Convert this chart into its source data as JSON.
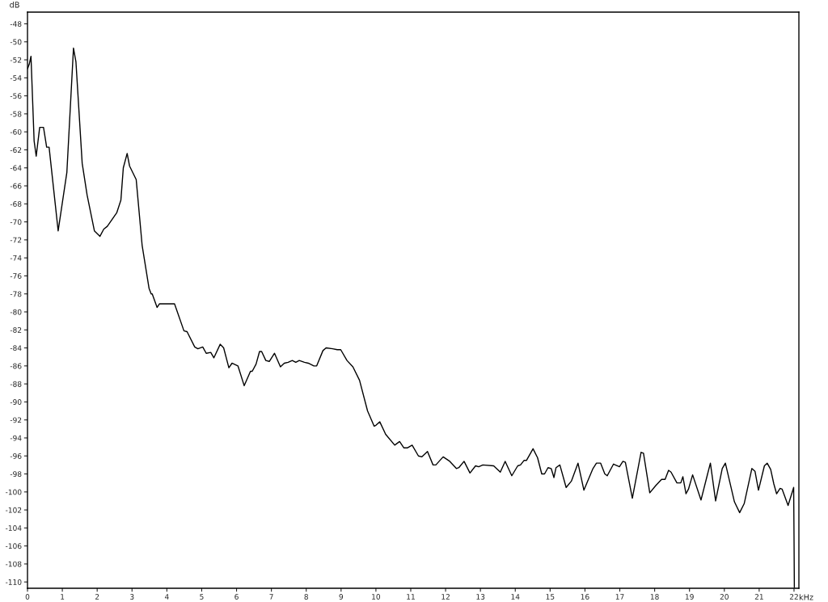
{
  "chart_data": {
    "type": "line",
    "xlabel": "kHz",
    "ylabel": "dB",
    "xlim": [
      0,
      22.14
    ],
    "ylim": [
      -110.7,
      -46.7
    ],
    "xticks": [
      0,
      1,
      2,
      3,
      4,
      5,
      6,
      7,
      8,
      9,
      10,
      11,
      12,
      13,
      14,
      15,
      16,
      17,
      18,
      19,
      20,
      21,
      22
    ],
    "yticks": [
      -48,
      -50,
      -52,
      -54,
      -56,
      -58,
      -60,
      -62,
      -64,
      -66,
      -68,
      -70,
      -72,
      -74,
      -76,
      -78,
      -80,
      -82,
      -84,
      -86,
      -88,
      -90,
      -92,
      -94,
      -96,
      -98,
      -100,
      -102,
      -104,
      -106,
      -108,
      -110
    ],
    "grid": false,
    "legend": false,
    "series": [
      {
        "color": "#000000",
        "x": [
          0,
          0.05,
          0.1,
          0.19,
          0.25,
          0.35,
          0.46,
          0.55,
          0.62,
          0.88,
          1.13,
          1.32,
          1.39,
          1.57,
          1.71,
          1.92,
          2.08,
          2.19,
          2.29,
          2.56,
          2.68,
          2.75,
          2.86,
          2.93,
          3.12,
          3.29,
          3.49,
          3.55,
          3.58,
          3.72,
          3.79,
          4.22,
          4.49,
          4.58,
          4.8,
          4.89,
          5.03,
          5.13,
          5.26,
          5.35,
          5.53,
          5.63,
          5.78,
          5.87,
          6.04,
          6.22,
          6.4,
          6.45,
          6.56,
          6.66,
          6.72,
          6.84,
          6.94,
          7.09,
          7.26,
          7.37,
          7.48,
          7.6,
          7.7,
          7.8,
          7.95,
          8.06,
          8.22,
          8.3,
          8.48,
          8.57,
          8.76,
          8.89,
          8.99,
          9.17,
          9.34,
          9.53,
          9.76,
          9.95,
          10.0,
          10.11,
          10.28,
          10.54,
          10.68,
          10.8,
          10.91,
          11.04,
          11.22,
          11.32,
          11.48,
          11.64,
          11.72,
          11.93,
          12.12,
          12.31,
          12.38,
          12.53,
          12.7,
          12.86,
          12.95,
          13.07,
          13.38,
          13.57,
          13.71,
          13.9,
          14.07,
          14.15,
          14.25,
          14.32,
          14.51,
          14.64,
          14.76,
          14.84,
          14.94,
          15.03,
          15.11,
          15.17,
          15.28,
          15.46,
          15.61,
          15.8,
          15.97,
          16.23,
          16.33,
          16.45,
          16.57,
          16.64,
          16.82,
          16.99,
          17.09,
          17.16,
          17.36,
          17.61,
          17.68,
          17.86,
          18.03,
          18.2,
          18.3,
          18.4,
          18.47,
          18.64,
          18.75,
          18.81,
          18.9,
          18.97,
          19.09,
          19.33,
          19.52,
          19.6,
          19.75,
          19.94,
          20.03,
          20.29,
          20.44,
          20.57,
          20.79,
          20.88,
          20.98,
          21.15,
          21.23,
          21.33,
          21.42,
          21.5,
          21.6,
          21.66,
          21.83,
          21.99,
          22.0,
          22.01
        ],
        "values": [
          -53,
          -52.5,
          -51.6,
          -61,
          -62.7,
          -59.5,
          -59.5,
          -61.7,
          -61.7,
          -71,
          -64.5,
          -50.7,
          -52.2,
          -63.5,
          -67,
          -71,
          -71.6,
          -70.8,
          -70.5,
          -69,
          -67.6,
          -64,
          -62.4,
          -63.8,
          -65.3,
          -72.6,
          -77.4,
          -78,
          -78,
          -79.5,
          -79.1,
          -79.1,
          -82.1,
          -82.2,
          -83.9,
          -84.1,
          -83.9,
          -84.6,
          -84.5,
          -85.1,
          -83.6,
          -84,
          -86.2,
          -85.7,
          -86,
          -88.2,
          -86.6,
          -86.6,
          -85.8,
          -84.4,
          -84.4,
          -85.4,
          -85.5,
          -84.6,
          -86.1,
          -85.7,
          -85.6,
          -85.4,
          -85.6,
          -85.4,
          -85.6,
          -85.7,
          -86,
          -86,
          -84.3,
          -84,
          -84.1,
          -84.2,
          -84.2,
          -85.4,
          -86.1,
          -87.6,
          -91,
          -92.7,
          -92.6,
          -92.2,
          -93.6,
          -94.8,
          -94.4,
          -95.1,
          -95.1,
          -94.8,
          -96,
          -96.1,
          -95.5,
          -97,
          -97,
          -96.1,
          -96.6,
          -97.4,
          -97.3,
          -96.6,
          -97.9,
          -97.1,
          -97.2,
          -97,
          -97.1,
          -97.8,
          -96.6,
          -98.2,
          -97.1,
          -97,
          -96.5,
          -96.5,
          -95.2,
          -96.2,
          -98,
          -98,
          -97.3,
          -97.4,
          -98.4,
          -97.3,
          -97,
          -99.5,
          -98.8,
          -96.8,
          -99.8,
          -97.4,
          -96.8,
          -96.8,
          -98,
          -98.2,
          -96.9,
          -97.2,
          -96.6,
          -96.7,
          -100.7,
          -95.6,
          -95.7,
          -100.1,
          -99.3,
          -98.6,
          -98.6,
          -97.6,
          -97.8,
          -99,
          -99,
          -98.3,
          -100.2,
          -99.7,
          -98.1,
          -100.9,
          -98,
          -96.8,
          -101,
          -97.4,
          -96.8,
          -101.1,
          -102.3,
          -101.3,
          -97.4,
          -97.7,
          -99.8,
          -97.1,
          -96.8,
          -97.5,
          -99.1,
          -100.2,
          -99.6,
          -99.7,
          -101.5,
          -99.5,
          -104.8,
          -110.6
        ]
      }
    ]
  }
}
